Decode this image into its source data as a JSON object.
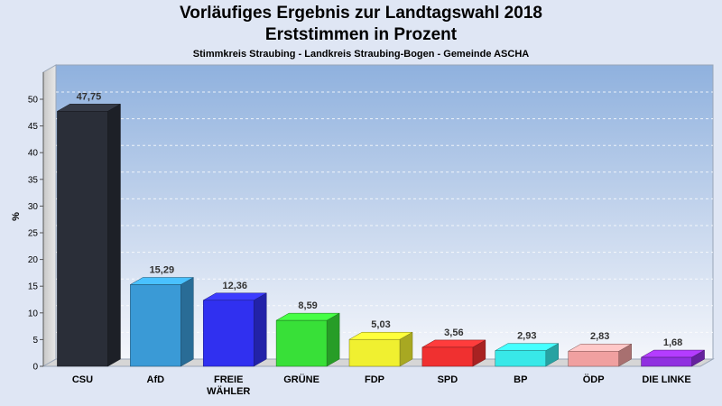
{
  "chart_data": {
    "type": "bar",
    "title": "Vorläufiges Ergebnis zur Landtagswahl 2018",
    "subtitle": "Erststimmen in Prozent",
    "subtitle2": "Stimmkreis Straubing - Landkreis Straubing-Bogen - Gemeinde ASCHA",
    "ylabel": "%",
    "ylim": [
      0,
      50
    ],
    "yticks": [
      0,
      5,
      10,
      15,
      20,
      25,
      30,
      35,
      40,
      45,
      50
    ],
    "categories": [
      [
        "CSU"
      ],
      [
        "AfD"
      ],
      [
        "FREIE",
        "WÄHLER"
      ],
      [
        "GRÜNE"
      ],
      [
        "FDP"
      ],
      [
        "SPD"
      ],
      [
        "BP"
      ],
      [
        "ÖDP"
      ],
      [
        "DIE LINKE"
      ]
    ],
    "values": [
      47.75,
      15.29,
      12.36,
      8.59,
      5.03,
      3.56,
      2.93,
      2.83,
      1.68
    ],
    "value_labels": [
      "47,75",
      "15,29",
      "12,36",
      "8,59",
      "5,03",
      "3,56",
      "2,93",
      "2,83",
      "1,68"
    ],
    "colors": [
      "#2a2e38",
      "#3a9ad6",
      "#3030f0",
      "#38e038",
      "#f0f030",
      "#f03030",
      "#38e8e8",
      "#f0a0a0",
      "#9030e0"
    ]
  }
}
